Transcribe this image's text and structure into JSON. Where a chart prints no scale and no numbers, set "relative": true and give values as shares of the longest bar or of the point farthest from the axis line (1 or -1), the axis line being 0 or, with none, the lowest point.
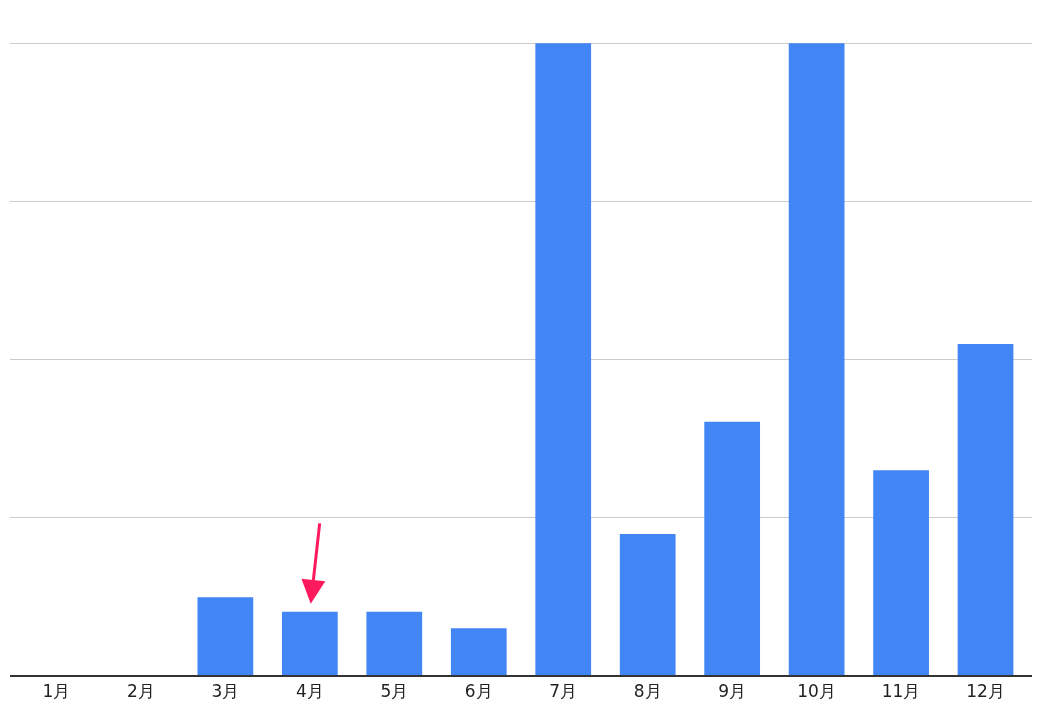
{
  "chart_data": {
    "type": "bar",
    "relative": true,
    "categories": [
      "1月",
      "2月",
      "3月",
      "4月",
      "5月",
      "6月",
      "7月",
      "8月",
      "9月",
      "10月",
      "11月",
      "12月"
    ],
    "values": [
      0,
      0,
      0.123,
      0.1,
      0.1,
      0.074,
      1,
      0.223,
      0.401,
      1,
      0.324,
      0.524
    ],
    "color": "#4285f4",
    "grid": "y",
    "legend": false
  }
}
